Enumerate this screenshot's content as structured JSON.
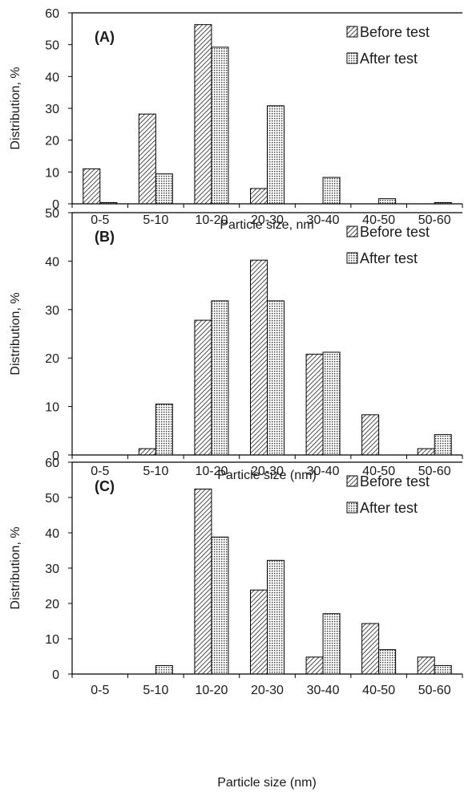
{
  "chart_data": [
    {
      "type": "bar",
      "panel_label": "(A)",
      "categories": [
        "0-5",
        "5-10",
        "10-20",
        "20-30",
        "30-40",
        "40-50",
        "50-60"
      ],
      "series": [
        {
          "name": "Before test",
          "values": [
            11,
            28.2,
            56.3,
            4.8,
            0,
            0,
            0
          ]
        },
        {
          "name": "After test",
          "values": [
            0.4,
            9.4,
            49.2,
            30.8,
            8.3,
            1.6,
            0.4
          ]
        }
      ],
      "ylabel": "Distribution, %",
      "xlabel": "Particle size, nm",
      "ylim": [
        0,
        60
      ],
      "yticks": [
        0,
        10,
        20,
        30,
        40,
        50,
        60
      ],
      "legend": "top-right"
    },
    {
      "type": "bar",
      "panel_label": "(B)",
      "categories": [
        "0-5",
        "5-10",
        "10-20",
        "20-30",
        "30-40",
        "40-50",
        "50-60"
      ],
      "series": [
        {
          "name": "Before test",
          "values": [
            0,
            1.3,
            27.8,
            40.2,
            20.8,
            8.3,
            1.3
          ]
        },
        {
          "name": "After test",
          "values": [
            0,
            10.5,
            31.8,
            31.8,
            21.2,
            0,
            4.2
          ]
        }
      ],
      "ylabel": "Distribution, %",
      "xlabel": "Particle size (nm)",
      "ylim": [
        0,
        50
      ],
      "yticks": [
        0,
        10,
        20,
        30,
        40,
        50
      ],
      "legend": "top-right"
    },
    {
      "type": "bar",
      "panel_label": "(C)",
      "categories": [
        "0-5",
        "5-10",
        "10-20",
        "20-30",
        "30-40",
        "40-50",
        "50-60"
      ],
      "series": [
        {
          "name": "Before test",
          "values": [
            0,
            0,
            52.4,
            23.8,
            4.8,
            14.3,
            4.8
          ]
        },
        {
          "name": "After test",
          "values": [
            0,
            2.4,
            38.8,
            32.2,
            17.1,
            6.9,
            2.4
          ]
        }
      ],
      "ylabel": "Distribution, %",
      "xlabel": "Particle size (nm)",
      "ylim": [
        0,
        60
      ],
      "yticks": [
        0,
        10,
        20,
        30,
        40,
        50,
        60
      ],
      "legend": "top-right"
    }
  ]
}
